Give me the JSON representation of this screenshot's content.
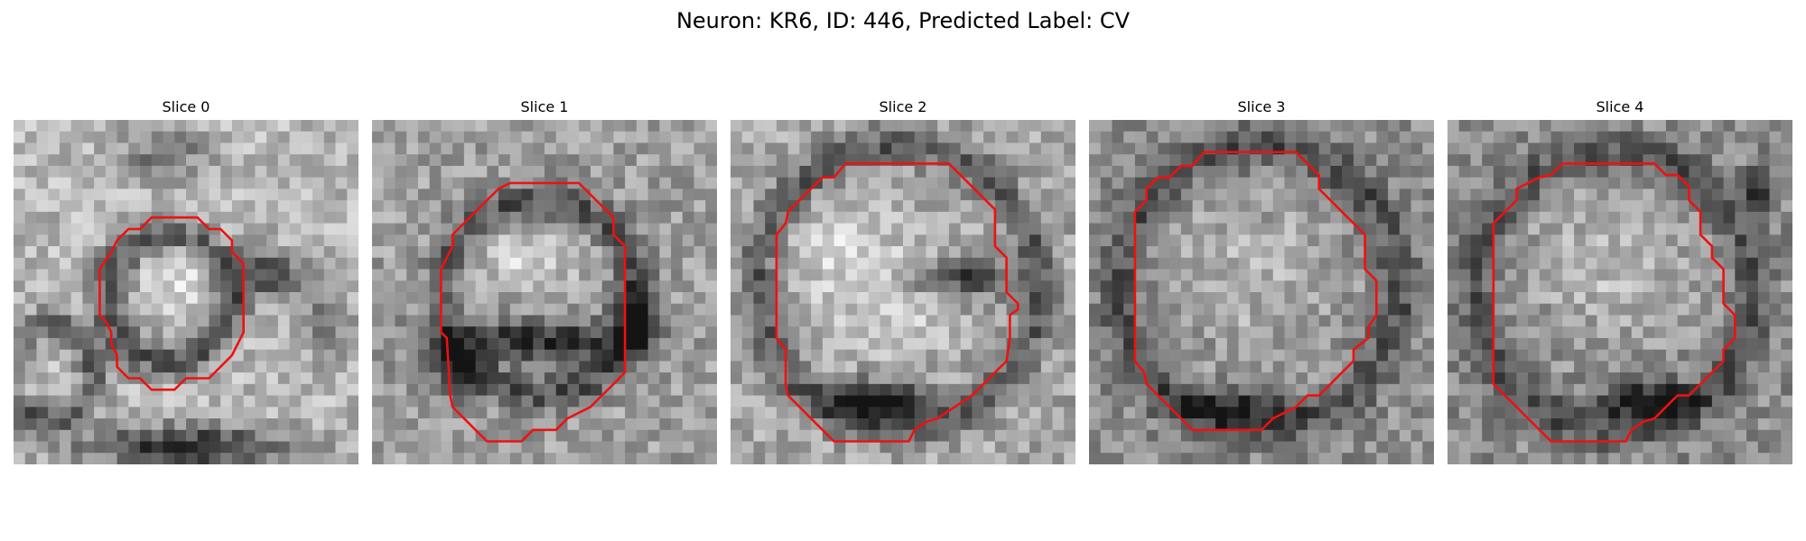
{
  "figure": {
    "title": "Neuron: KR6, ID: 446, Predicted Label: CV"
  },
  "colors": {
    "contour": "#ee1111",
    "background": "#ffffff"
  },
  "panels": [
    {
      "title": "Slice 0"
    },
    {
      "title": "Slice 1"
    },
    {
      "title": "Slice 2"
    },
    {
      "title": "Slice 3"
    },
    {
      "title": "Slice 4"
    }
  ]
}
